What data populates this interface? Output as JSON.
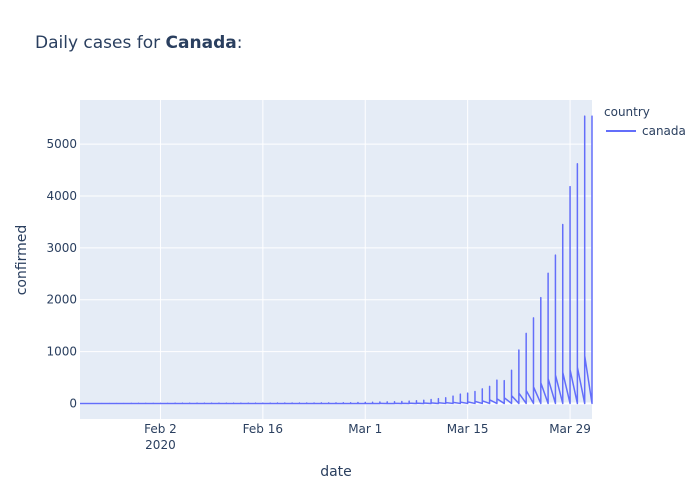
{
  "chart_data": {
    "type": "line",
    "title_prefix": "Daily cases for ",
    "title_bold": "Canada",
    "title_suffix": ":",
    "xlabel": "date",
    "ylabel": "confirmed",
    "legend_title": "country",
    "x_ticks": [
      {
        "date": "2020-02-02",
        "label": "Feb 2",
        "sublabel": "2020"
      },
      {
        "date": "2020-02-16",
        "label": "Feb 16",
        "sublabel": ""
      },
      {
        "date": "2020-03-01",
        "label": "Mar 1",
        "sublabel": ""
      },
      {
        "date": "2020-03-15",
        "label": "Mar 15",
        "sublabel": ""
      },
      {
        "date": "2020-03-29",
        "label": "Mar 29",
        "sublabel": ""
      }
    ],
    "y_ticks": [
      0,
      1000,
      2000,
      3000,
      4000,
      5000
    ],
    "xlim": [
      "2020-01-22",
      "2020-04-01"
    ],
    "ylim": [
      -300,
      5850
    ],
    "grid": true,
    "legend_position": "top-right",
    "colors": {
      "line": "#636efa",
      "plot_bg": "#e5ecf6",
      "grid": "#ffffff"
    },
    "series": [
      {
        "name": "canada",
        "dates": [
          "2020-01-22",
          "2020-01-23",
          "2020-01-24",
          "2020-01-25",
          "2020-01-26",
          "2020-01-27",
          "2020-01-28",
          "2020-01-29",
          "2020-01-30",
          "2020-01-31",
          "2020-02-01",
          "2020-02-02",
          "2020-02-03",
          "2020-02-04",
          "2020-02-05",
          "2020-02-06",
          "2020-02-07",
          "2020-02-08",
          "2020-02-09",
          "2020-02-10",
          "2020-02-11",
          "2020-02-12",
          "2020-02-13",
          "2020-02-14",
          "2020-02-15",
          "2020-02-16",
          "2020-02-17",
          "2020-02-18",
          "2020-02-19",
          "2020-02-20",
          "2020-02-21",
          "2020-02-22",
          "2020-02-23",
          "2020-02-24",
          "2020-02-25",
          "2020-02-26",
          "2020-02-27",
          "2020-02-28",
          "2020-02-29",
          "2020-03-01",
          "2020-03-02",
          "2020-03-03",
          "2020-03-04",
          "2020-03-05",
          "2020-03-06",
          "2020-03-07",
          "2020-03-08",
          "2020-03-09",
          "2020-03-10",
          "2020-03-11",
          "2020-03-12",
          "2020-03-13",
          "2020-03-14",
          "2020-03-15",
          "2020-03-16",
          "2020-03-17",
          "2020-03-18",
          "2020-03-19",
          "2020-03-20",
          "2020-03-21",
          "2020-03-22",
          "2020-03-23",
          "2020-03-24",
          "2020-03-25",
          "2020-03-26",
          "2020-03-27",
          "2020-03-28",
          "2020-03-29",
          "2020-03-30",
          "2020-03-31",
          "2020-04-01"
        ],
        "peaks": [
          0,
          0,
          0,
          1,
          1,
          1,
          2,
          3,
          3,
          4,
          4,
          4,
          4,
          5,
          5,
          5,
          6,
          6,
          6,
          6,
          7,
          7,
          7,
          7,
          7,
          7,
          7,
          8,
          8,
          8,
          9,
          9,
          9,
          10,
          11,
          12,
          13,
          14,
          17,
          20,
          24,
          27,
          30,
          33,
          37,
          45,
          51,
          62,
          77,
          93,
          110,
          140,
          180,
          200,
          230,
          280,
          330,
          450,
          440,
          640,
          1030,
          1350,
          1650,
          2040,
          2510,
          2860,
          3450,
          4180,
          4620,
          5540,
          5540
        ],
        "lows": [
          0,
          0,
          0,
          0,
          0,
          0,
          0,
          0,
          0,
          0,
          0,
          0,
          0,
          0,
          0,
          0,
          0,
          0,
          0,
          0,
          0,
          0,
          0,
          0,
          0,
          0,
          0,
          0,
          0,
          0,
          0,
          0,
          0,
          0,
          0,
          0,
          0,
          0,
          0,
          0,
          0,
          0,
          0,
          0,
          0,
          0,
          0,
          0,
          0,
          0,
          0,
          0,
          0,
          0,
          0,
          0,
          0,
          0,
          0,
          0,
          0,
          0,
          0,
          0,
          0,
          0,
          0,
          0,
          0,
          0,
          0
        ],
        "steps": [
          0,
          0,
          0,
          0,
          0,
          0,
          0,
          0,
          0,
          0,
          0,
          0,
          0,
          0,
          0,
          0,
          0,
          0,
          0,
          0,
          0,
          0,
          0,
          0,
          0,
          0,
          0,
          0,
          0,
          0,
          0,
          0,
          0,
          0,
          0,
          0,
          0,
          0,
          0,
          1,
          1,
          1,
          2,
          3,
          4,
          5,
          6,
          8,
          10,
          13,
          16,
          20,
          25,
          30,
          40,
          50,
          70,
          90,
          110,
          150,
          200,
          250,
          320,
          400,
          480,
          550,
          600,
          650,
          700,
          920,
          920
        ]
      }
    ]
  }
}
